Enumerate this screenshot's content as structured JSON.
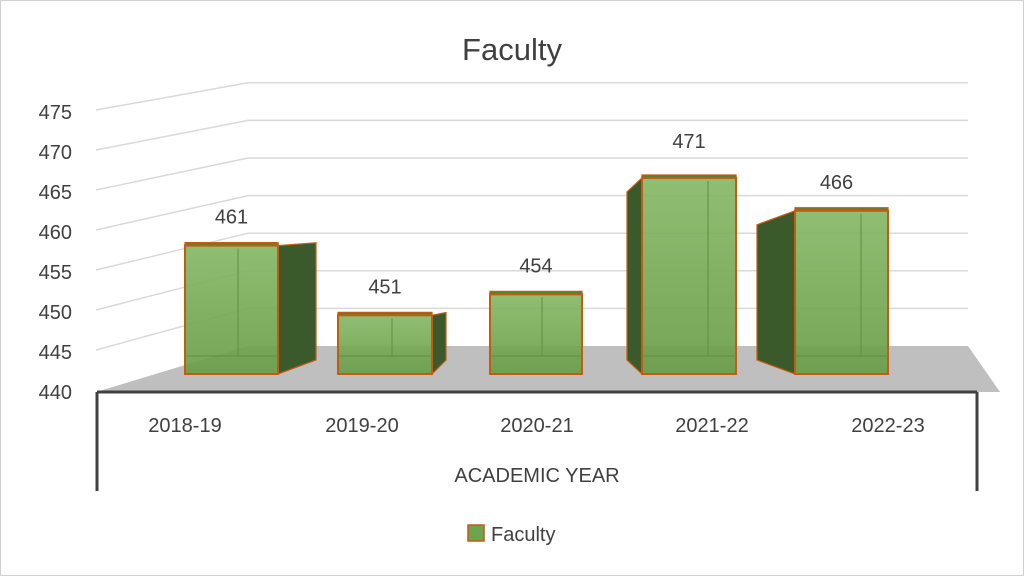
{
  "chart_data": {
    "type": "bar",
    "style": "3d-column",
    "title": "Faculty",
    "xlabel": "ACADEMIC YEAR",
    "ylabel": "",
    "categories": [
      "2018-19",
      "2019-20",
      "2020-21",
      "2021-22",
      "2022-23"
    ],
    "series": [
      {
        "name": "Faculty",
        "values": [
          461,
          451,
          454,
          471,
          466
        ]
      }
    ],
    "ylim": [
      440,
      475
    ],
    "yticks": [
      475,
      470,
      465,
      460,
      455,
      450,
      445,
      440
    ],
    "grid": true,
    "legend": "bottom",
    "colors": {
      "bar_front": "#70a34f",
      "bar_side": "#3b5a2c",
      "bar_top": "#548235",
      "bar_edge": "#c55a11",
      "floor": "#bfbfbf",
      "axis": "#404040",
      "grid": "#d9d9d9",
      "text": "#404040"
    }
  }
}
